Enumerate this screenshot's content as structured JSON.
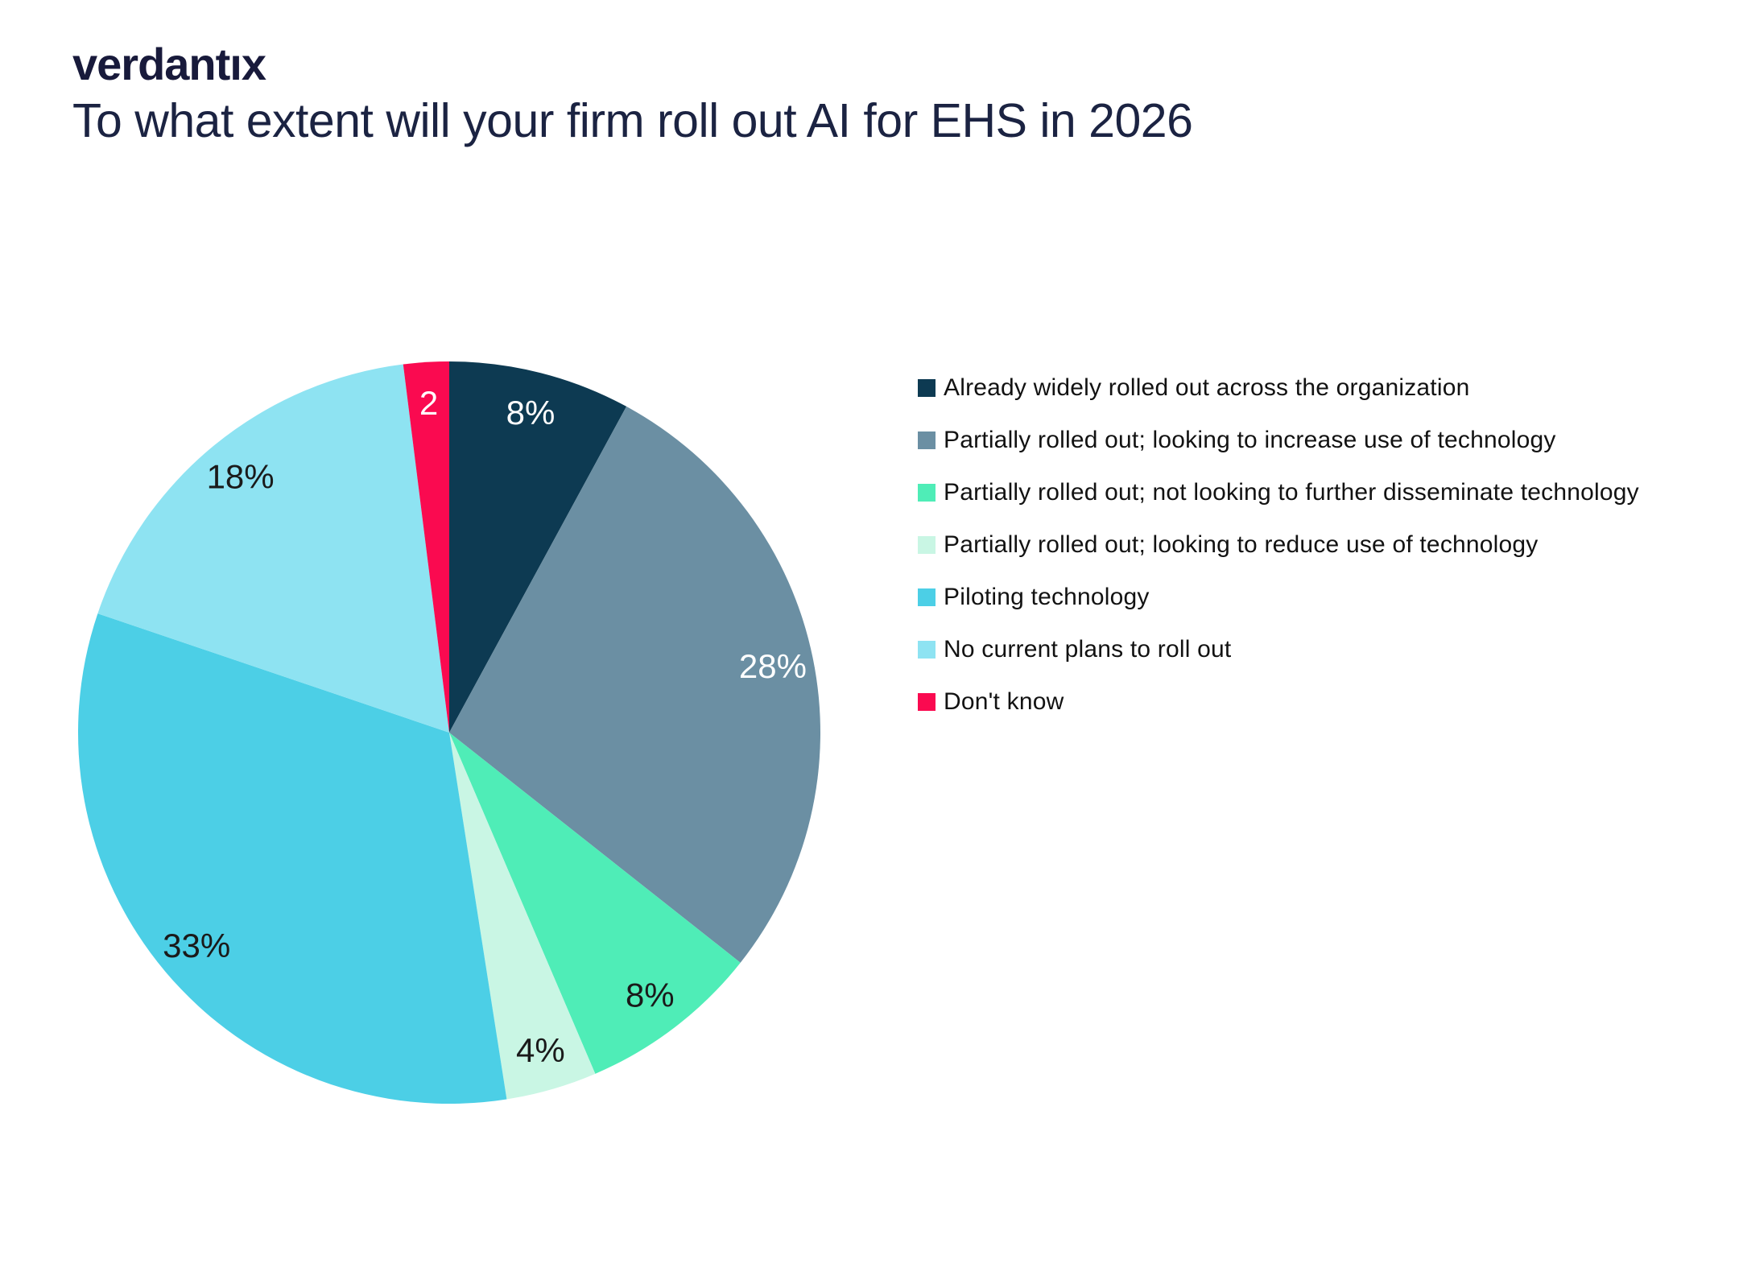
{
  "logo": {
    "text": "verdantıx"
  },
  "title": "To what extent will your firm roll out AI for EHS in 2026",
  "colors": {
    "title_text": "#1b2342",
    "legend_text": "#121212",
    "background": "#ffffff"
  },
  "chart_data": {
    "type": "pie",
    "title": "To what extent will your firm roll out AI for EHS in 2026",
    "direction": "clockwise",
    "start_angle_deg": 0,
    "legend_position": "right",
    "slices": [
      {
        "label": "Already widely rolled out across the organization",
        "value": 8,
        "display": "8%",
        "color": "#0d3a52",
        "label_color": "#ffffff"
      },
      {
        "label": "Partially rolled out; looking to increase use of technology",
        "value": 28,
        "display": "28%",
        "color": "#6b8fa3",
        "label_color": "#ffffff"
      },
      {
        "label": "Partially rolled out; not looking to further disseminate technology",
        "value": 8,
        "display": "8%",
        "color": "#4fedb7",
        "label_color": "#1a1a1a"
      },
      {
        "label": "Partially rolled out; looking to reduce use of technology",
        "value": 4,
        "display": "4%",
        "color": "#c9f6e4",
        "label_color": "#1a1a1a"
      },
      {
        "label": "Piloting technology",
        "value": 33,
        "display": "33%",
        "color": "#4ccfe6",
        "label_color": "#1a1a1a"
      },
      {
        "label": "No current plans to roll out",
        "value": 18,
        "display": "18%",
        "color": "#8ee3f2",
        "label_color": "#1a1a1a"
      },
      {
        "label": "Don't know",
        "value": 2,
        "display": "2",
        "color": "#fa0a50",
        "label_color": "#ffffff"
      }
    ]
  }
}
